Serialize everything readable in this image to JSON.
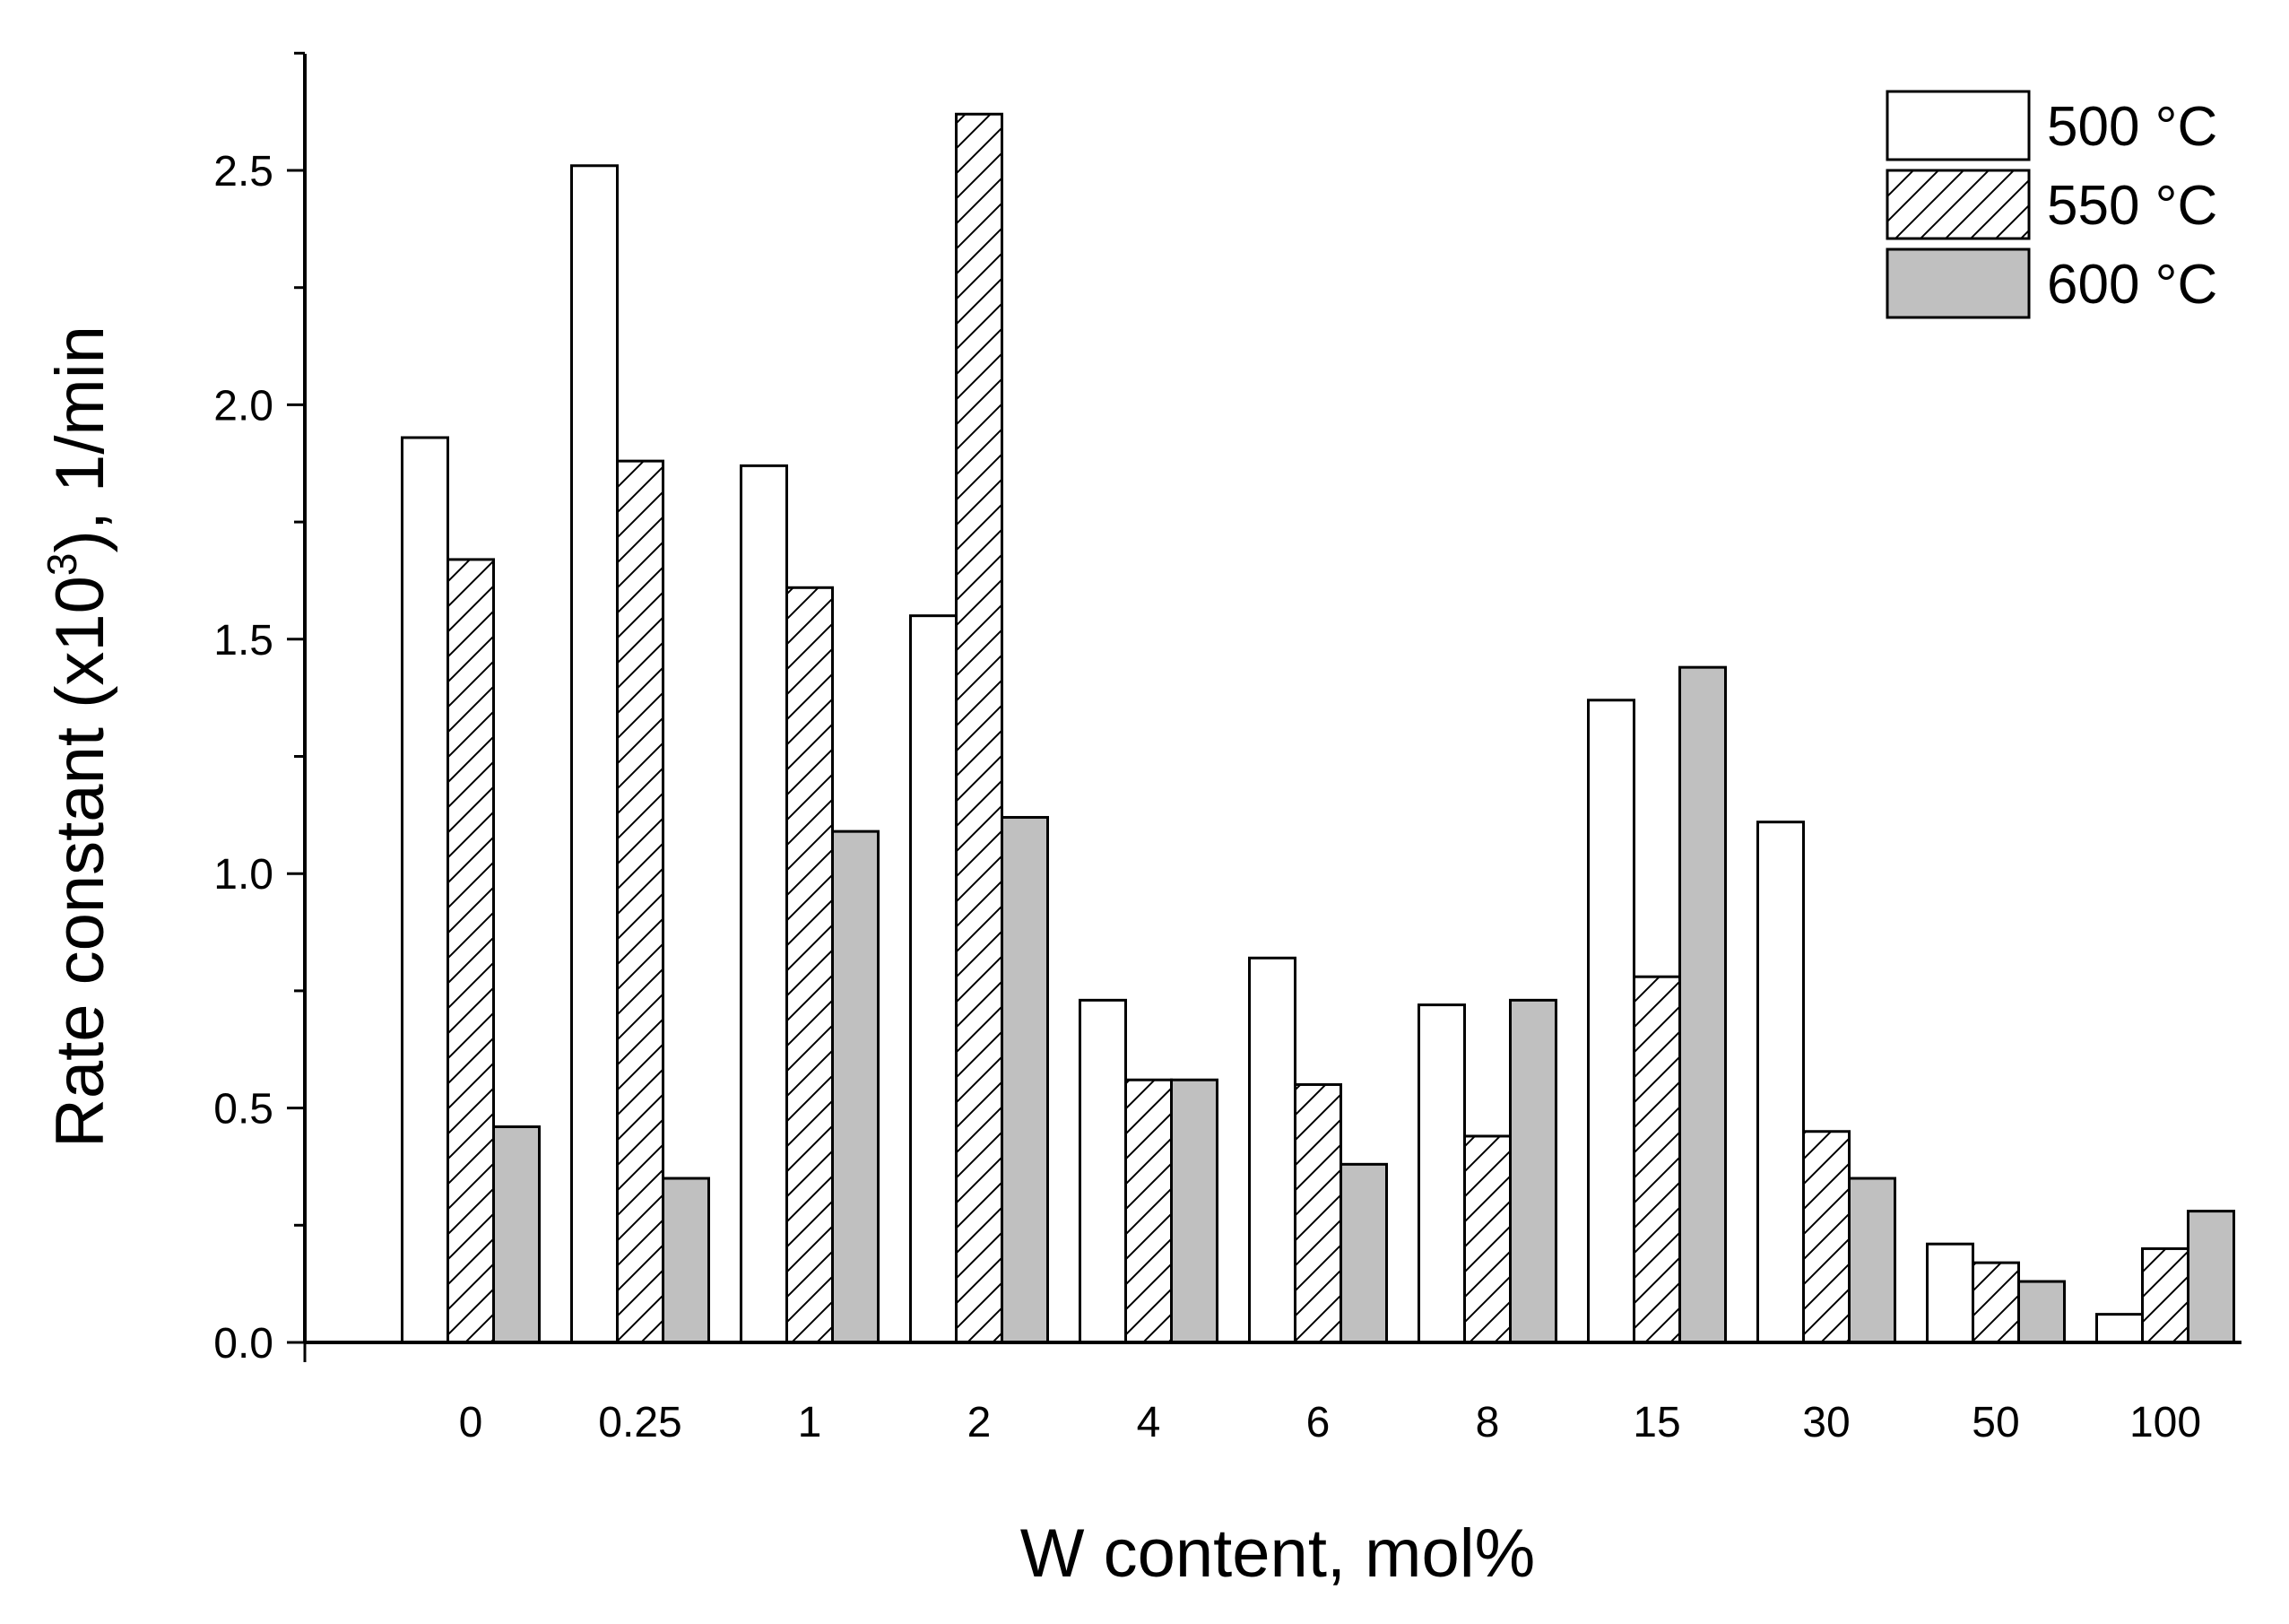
{
  "chart_data": {
    "type": "bar",
    "title": "",
    "xlabel": "W content, mol%",
    "ylabel": {
      "prefix": "Rate constant (x10",
      "exponent": "3",
      "suffix": "),  1/min"
    },
    "categories": [
      "0",
      "0.25",
      "1",
      "2",
      "4",
      "6",
      "8",
      "15",
      "30",
      "50",
      "100"
    ],
    "ylim": [
      0,
      2.75
    ],
    "yticks": [
      "0.0",
      "0.5",
      "1.0",
      "1.5",
      "2.0",
      "2.5"
    ],
    "grid": false,
    "legend_position": "top-right",
    "series": [
      {
        "name": "500 °C",
        "fill": "#ffffff",
        "pattern": "none",
        "values": [
          1.93,
          2.51,
          1.87,
          1.55,
          0.73,
          0.82,
          0.72,
          1.37,
          1.11,
          0.21,
          0.06
        ]
      },
      {
        "name": "550 °C",
        "fill": "#ffffff",
        "pattern": "hatch",
        "values": [
          1.67,
          1.88,
          1.61,
          2.62,
          0.56,
          0.55,
          0.44,
          0.78,
          0.45,
          0.17,
          0.2
        ]
      },
      {
        "name": "600 °C",
        "fill": "#c0c0c0",
        "pattern": "none",
        "values": [
          0.46,
          0.35,
          1.09,
          1.12,
          0.56,
          0.38,
          0.73,
          1.44,
          0.35,
          0.13,
          0.28
        ]
      }
    ]
  }
}
